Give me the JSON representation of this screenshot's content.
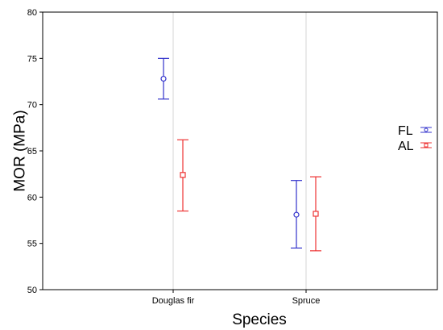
{
  "chart_data": {
    "type": "errorbar",
    "xlabel": "Species",
    "ylabel": "MOR (MPa)",
    "categories": [
      "Douglas fir",
      "Spruce"
    ],
    "ylim": [
      50,
      80
    ],
    "yticks": [
      50,
      55,
      60,
      65,
      70,
      75,
      80
    ],
    "grid": true,
    "legend_position": "right",
    "series": [
      {
        "name": "FL",
        "color": "#3333cc",
        "marker": "circle",
        "values": [
          72.8,
          58.1
        ],
        "lower": [
          70.6,
          54.5
        ],
        "upper": [
          75.0,
          61.8
        ]
      },
      {
        "name": "AL",
        "color": "#ee3333",
        "marker": "square",
        "values": [
          62.4,
          58.2
        ],
        "lower": [
          58.5,
          54.2
        ],
        "upper": [
          66.2,
          62.2
        ]
      }
    ]
  }
}
